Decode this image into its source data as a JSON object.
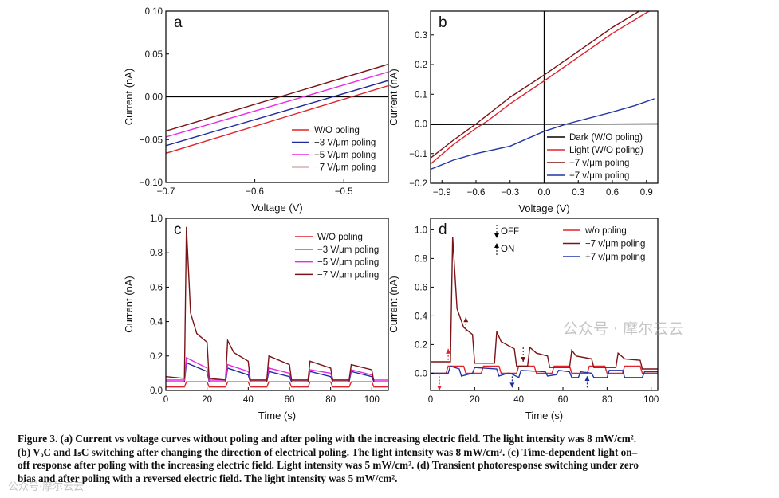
{
  "chart_data": [
    {
      "id": "a",
      "type": "line",
      "panel_label": "a",
      "xlabel": "Voltage (V)",
      "ylabel": "Current (nA)",
      "xlim": [
        -0.7,
        -0.45
      ],
      "ylim": [
        -0.1,
        0.1
      ],
      "xticks": [
        -0.7,
        -0.6,
        -0.5
      ],
      "xtick_labels": [
        "-0.7",
        "-0.6",
        "-0.5"
      ],
      "yticks": [
        -0.1,
        -0.05,
        0.0,
        0.05,
        0.1
      ],
      "ytick_labels": [
        "-0.10",
        "-0.05",
        "0.00",
        "0.05",
        "0.10"
      ],
      "hline": 0,
      "legend": "bottom-right",
      "series": [
        {
          "name": "W/O poling",
          "color": "#e0242b",
          "x": [
            -0.7,
            -0.45
          ],
          "y": [
            -0.066,
            0.013
          ]
        },
        {
          "name": "−3 V/μm poling",
          "color": "#1f2a9c",
          "x": [
            -0.7,
            -0.45
          ],
          "y": [
            -0.057,
            0.019
          ]
        },
        {
          "name": "−5 V/μm poling",
          "color": "#e82ae6",
          "x": [
            -0.7,
            -0.45
          ],
          "y": [
            -0.047,
            0.029
          ]
        },
        {
          "name": "−7 V/μm poling",
          "color": "#7a1416",
          "x": [
            -0.7,
            -0.45
          ],
          "y": [
            -0.04,
            0.038
          ]
        }
      ]
    },
    {
      "id": "b",
      "type": "line",
      "panel_label": "b",
      "xlabel": "Voltage (V)",
      "ylabel": "Current (nA)",
      "xlim": [
        -1.0,
        1.0
      ],
      "ylim": [
        -0.2,
        0.38
      ],
      "xticks": [
        -0.9,
        -0.6,
        -0.3,
        0.0,
        0.3,
        0.6,
        0.9
      ],
      "xtick_labels": [
        "-0.9",
        "-0.6",
        "-0.3",
        "0.0",
        "0.3",
        "0.6",
        "0.9"
      ],
      "yticks": [
        -0.2,
        -0.1,
        0.0,
        0.1,
        0.2,
        0.3
      ],
      "ytick_labels": [
        "-0.2",
        "-0.1",
        "0.0",
        "0.1",
        "0.2",
        "0.3"
      ],
      "vline": 0,
      "legend": "bottom-right",
      "series": [
        {
          "name": "Dark (W/O poling)",
          "color": "#000000",
          "x": [
            -1.0,
            0.0,
            1.0
          ],
          "y": [
            -0.002,
            -0.001,
            0.0
          ]
        },
        {
          "name": "Light (W/O poling)",
          "color": "#e0242b",
          "x": [
            -1.0,
            -0.8,
            -0.6,
            -0.5,
            -0.3,
            0.0,
            0.3,
            0.6,
            0.9,
            1.0
          ],
          "y": [
            -0.135,
            -0.07,
            -0.015,
            0.01,
            0.068,
            0.145,
            0.225,
            0.305,
            0.375,
            0.395
          ]
        },
        {
          "name": "−7 v/μm poling",
          "color": "#7a1416",
          "x": [
            -1.0,
            -0.8,
            -0.6,
            -0.5,
            -0.3,
            0.0,
            0.3,
            0.6,
            0.9,
            1.0
          ],
          "y": [
            -0.115,
            -0.055,
            0.0,
            0.03,
            0.09,
            0.165,
            0.245,
            0.325,
            0.395,
            0.415
          ]
        },
        {
          "name": "+7 v/μm poling",
          "color": "#2334a8",
          "x": [
            -1.0,
            -0.8,
            -0.6,
            -0.3,
            0.0,
            0.2,
            0.4,
            0.6,
            0.8,
            0.97
          ],
          "y": [
            -0.153,
            -0.122,
            -0.1,
            -0.075,
            -0.025,
            0.0,
            0.02,
            0.04,
            0.062,
            0.085
          ]
        }
      ]
    },
    {
      "id": "c",
      "type": "line",
      "panel_label": "c",
      "xlabel": "Time (s)",
      "ylabel": "Current (nA)",
      "xlim": [
        0,
        108
      ],
      "ylim": [
        0,
        1.0
      ],
      "xticks": [
        0,
        20,
        40,
        60,
        80,
        100
      ],
      "xtick_labels": [
        "0",
        "20",
        "40",
        "60",
        "80",
        "100"
      ],
      "yticks": [
        0,
        0.2,
        0.4,
        0.6,
        0.8,
        1.0
      ],
      "ytick_labels": [
        "0.0",
        "0.2",
        "0.4",
        "0.6",
        "0.8",
        "1.0"
      ],
      "legend": "top-right",
      "series": [
        {
          "name": "W/O poling",
          "color": "#e0242b",
          "x": [
            0,
            9,
            10,
            20,
            21,
            29,
            30,
            40,
            41,
            49,
            50,
            60,
            61,
            69,
            70,
            80,
            81,
            89,
            90,
            100,
            101,
            108
          ],
          "y": [
            0.02,
            0.02,
            0.05,
            0.05,
            0.02,
            0.02,
            0.05,
            0.05,
            0.02,
            0.02,
            0.05,
            0.05,
            0.02,
            0.02,
            0.05,
            0.05,
            0.02,
            0.02,
            0.05,
            0.05,
            0.02,
            0.02
          ]
        },
        {
          "name": "−3 V/μm poling",
          "color": "#1f2a9c",
          "x": [
            0,
            9,
            10,
            20,
            21,
            29,
            30,
            40,
            41,
            49,
            50,
            60,
            61,
            69,
            70,
            80,
            81,
            89,
            90,
            100,
            101,
            108
          ],
          "y": [
            0.05,
            0.05,
            0.16,
            0.11,
            0.05,
            0.05,
            0.13,
            0.09,
            0.05,
            0.05,
            0.11,
            0.08,
            0.05,
            0.05,
            0.11,
            0.08,
            0.05,
            0.05,
            0.11,
            0.08,
            0.05,
            0.05
          ]
        },
        {
          "name": "−5 V/μm poling",
          "color": "#e82ae6",
          "x": [
            0,
            9,
            10,
            20,
            21,
            29,
            30,
            40,
            41,
            49,
            50,
            60,
            61,
            69,
            70,
            80,
            81,
            89,
            90,
            100,
            101,
            108
          ],
          "y": [
            0.06,
            0.06,
            0.19,
            0.13,
            0.06,
            0.06,
            0.15,
            0.11,
            0.06,
            0.06,
            0.13,
            0.1,
            0.06,
            0.06,
            0.12,
            0.1,
            0.06,
            0.06,
            0.12,
            0.09,
            0.06,
            0.06
          ]
        },
        {
          "name": "−7 V/μm poling",
          "color": "#7a1416",
          "x": [
            0,
            9,
            10,
            12,
            15,
            20,
            21,
            29,
            30,
            33,
            40,
            41,
            49,
            50,
            60,
            61,
            69,
            70,
            80,
            81,
            89,
            90,
            100,
            101,
            108
          ],
          "y": [
            0.08,
            0.07,
            0.95,
            0.45,
            0.33,
            0.28,
            0.07,
            0.06,
            0.29,
            0.22,
            0.17,
            0.06,
            0.06,
            0.2,
            0.15,
            0.06,
            0.06,
            0.17,
            0.13,
            0.06,
            0.06,
            0.15,
            0.12,
            0.05,
            0.05
          ]
        }
      ]
    },
    {
      "id": "d",
      "type": "line",
      "panel_label": "d",
      "xlabel": "Time (s)",
      "ylabel": "Current (nA)",
      "xlim": [
        0,
        103
      ],
      "ylim": [
        -0.12,
        1.08
      ],
      "xticks": [
        0,
        20,
        40,
        60,
        80,
        100
      ],
      "xtick_labels": [
        "0",
        "20",
        "40",
        "60",
        "80",
        "100"
      ],
      "yticks": [
        0.0,
        0.2,
        0.4,
        0.6,
        0.8,
        1.0
      ],
      "ytick_labels": [
        "0.0",
        "0.2",
        "0.4",
        "0.6",
        "0.8",
        "1.0"
      ],
      "legend": "top-right",
      "switch_legend": {
        "off": "OFF",
        "on": "ON"
      },
      "arrows": [
        {
          "t": 4,
          "dir": "down",
          "color": "#e0242b",
          "y_from": 0.0,
          "y_to": -0.12
        },
        {
          "t": 8,
          "dir": "up",
          "color": "#e0242b",
          "y_from": 0.07,
          "y_to": 0.17
        },
        {
          "t": 16,
          "dir": "up",
          "color": "#7a1416",
          "y_from": 0.29,
          "y_to": 0.39
        },
        {
          "t": 42,
          "dir": "down",
          "color": "#7a1416",
          "y_from": 0.18,
          "y_to": 0.08
        },
        {
          "t": 37,
          "dir": "down",
          "color": "#1f2a9c",
          "y_from": 0.0,
          "y_to": -0.1
        },
        {
          "t": 71,
          "dir": "up",
          "color": "#1f2a9c",
          "y_from": -0.1,
          "y_to": -0.02
        }
      ],
      "series": [
        {
          "name": "w/o poling",
          "color": "#e0242b",
          "x": [
            0,
            7,
            8,
            15,
            16,
            23,
            24,
            31,
            32,
            39,
            40,
            47,
            48,
            55,
            56,
            63,
            64,
            71,
            72,
            79,
            80,
            87,
            88,
            95,
            96,
            103
          ],
          "y": [
            0.0,
            0.0,
            0.05,
            0.05,
            0.0,
            0.0,
            0.05,
            0.05,
            0.0,
            0.0,
            0.05,
            0.05,
            0.0,
            0.0,
            0.05,
            0.05,
            0.0,
            0.0,
            0.05,
            0.05,
            0.0,
            0.0,
            0.05,
            0.05,
            0.0,
            0.0
          ]
        },
        {
          "name": "−7 v/μm poling",
          "color": "#7a1416",
          "x": [
            0,
            9,
            10,
            12,
            15,
            19,
            20,
            29,
            30,
            32,
            38,
            39,
            44,
            45,
            48,
            53,
            54,
            63,
            64,
            66,
            73,
            74,
            84,
            85,
            88,
            95,
            96,
            103
          ],
          "y": [
            0.08,
            0.08,
            0.95,
            0.45,
            0.32,
            0.27,
            0.07,
            0.07,
            0.29,
            0.22,
            0.17,
            0.05,
            0.05,
            0.18,
            0.14,
            0.12,
            0.04,
            0.04,
            0.16,
            0.12,
            0.1,
            0.04,
            0.04,
            0.14,
            0.1,
            0.09,
            0.03,
            0.03
          ]
        },
        {
          "name": "+7 v/μm poling",
          "color": "#2334a8",
          "x": [
            0,
            8,
            9,
            13,
            14,
            19,
            20,
            30,
            31,
            35,
            36,
            40,
            41,
            52,
            53,
            57,
            58,
            63,
            64,
            67,
            68,
            73,
            74,
            80,
            81,
            87,
            88,
            96,
            97,
            103
          ],
          "y": [
            0.0,
            0.0,
            0.05,
            0.03,
            -0.02,
            0.0,
            0.04,
            0.03,
            -0.02,
            0.0,
            0.0,
            -0.03,
            0.02,
            0.01,
            -0.02,
            -0.01,
            0.02,
            0.01,
            -0.03,
            -0.03,
            0.01,
            0.0,
            -0.03,
            -0.03,
            0.02,
            0.02,
            -0.03,
            -0.03,
            0.01,
            0.01
          ]
        }
      ]
    }
  ],
  "caption": {
    "lines": [
      "Figure 3. (a) Current vs voltage curves without poling and after poling with the increasing electric field. The light intensity was 8 mW/cm².",
      "(b) VₒC and IₛC switching after changing the direction of electrical poling. The light intensity was 8 mW/cm². (c) Time-dependent light on–",
      "off response after poling with the increasing electric field. Light intensity was 5 mW/cm². (d) Transient photoresponse switching under zero",
      "bias and after poling with a reversed electric field. The light intensity was 5 mW/cm²."
    ]
  },
  "watermark": {
    "right": "公众号 · 摩尔云云",
    "left": "公众号·摩尔云云"
  }
}
